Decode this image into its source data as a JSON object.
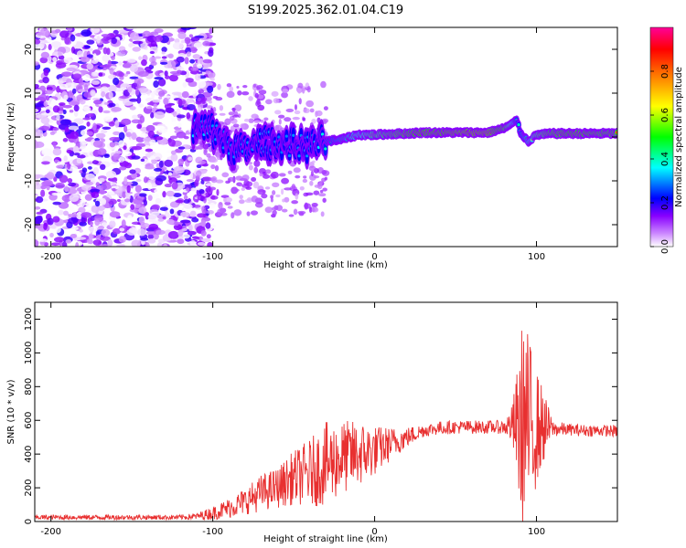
{
  "page_title": "S199.2025.362.01.04.C19",
  "chart_data": [
    {
      "id": "spectrogram",
      "type": "heatmap",
      "xlabel": "Height of straight line (km)",
      "ylabel": "Frequency (Hz)",
      "xlim": [
        -210,
        150
      ],
      "ylim": [
        -25,
        25
      ],
      "x_ticks": [
        -200,
        -100,
        0,
        100
      ],
      "y_ticks": [
        -20,
        -10,
        0,
        10,
        20
      ],
      "colorbar": {
        "label": "Normalized spectral amplitude",
        "range": [
          0,
          1
        ],
        "ticks": [
          0.0,
          0.2,
          0.4,
          0.6,
          0.8
        ],
        "colors": [
          "#ffffff",
          "#8800ff",
          "#0000ff",
          "#00ffff",
          "#00ff00",
          "#ffff00",
          "#ff6600",
          "#ff0000",
          "#ff00aa"
        ]
      },
      "ridge": {
        "x": [
          -110,
          -100,
          -90,
          -80,
          -70,
          -60,
          -50,
          -40,
          -30,
          -20,
          -10,
          0,
          10,
          20,
          30,
          40,
          50,
          60,
          70,
          80,
          85,
          88,
          90,
          95,
          100,
          110,
          120,
          130,
          140,
          150
        ],
        "y": [
          2,
          1.5,
          -2,
          -3,
          -1,
          -1.5,
          -2,
          -2,
          -1,
          -0.5,
          0.5,
          0.5,
          0.7,
          0.8,
          1,
          1,
          1,
          1,
          1,
          2,
          3,
          4,
          1,
          -1,
          0.5,
          0.8,
          0.8,
          0.8,
          0.8,
          0.8
        ],
        "amplitude": [
          0.35,
          0.3,
          0.3,
          0.3,
          0.3,
          0.28,
          0.3,
          0.3,
          0.4,
          0.5,
          0.6,
          0.7,
          0.75,
          0.8,
          0.85,
          0.85,
          0.88,
          0.9,
          0.9,
          0.8,
          0.6,
          0.4,
          0.4,
          0.55,
          0.7,
          0.8,
          0.82,
          0.82,
          0.8,
          0.8
        ]
      },
      "noise_region": {
        "x_from": -210,
        "x_to": -110
      }
    },
    {
      "id": "snr",
      "type": "line",
      "xlabel": "Height of straight line (km)",
      "ylabel": "SNR (10 * v/v)",
      "xlim": [
        -210,
        150
      ],
      "ylim": [
        0,
        1300
      ],
      "x_ticks": [
        -200,
        -100,
        0,
        100
      ],
      "y_ticks": [
        0,
        200,
        400,
        600,
        800,
        1000,
        1200
      ],
      "series": [
        {
          "name": "SNR",
          "color": "#e83030",
          "x": [
            -210,
            -200,
            -180,
            -160,
            -140,
            -120,
            -110,
            -100,
            -90,
            -80,
            -70,
            -60,
            -50,
            -40,
            -30,
            -20,
            -10,
            0,
            10,
            20,
            30,
            40,
            50,
            60,
            70,
            80,
            85,
            90,
            92,
            95,
            100,
            105,
            110,
            120,
            130,
            140,
            150
          ],
          "values": [
            25,
            25,
            25,
            25,
            25,
            25,
            30,
            50,
            80,
            120,
            170,
            200,
            260,
            290,
            340,
            380,
            400,
            420,
            460,
            500,
            540,
            555,
            560,
            560,
            560,
            560,
            570,
            550,
            600,
            560,
            560,
            560,
            550,
            545,
            540,
            540,
            535
          ],
          "noise_amplitude": [
            15,
            15,
            15,
            15,
            15,
            15,
            20,
            40,
            60,
            80,
            110,
            120,
            160,
            200,
            250,
            220,
            200,
            150,
            100,
            60,
            40,
            40,
            40,
            40,
            40,
            40,
            120,
            500,
            700,
            550,
            350,
            200,
            50,
            35,
            35,
            35,
            35
          ]
        }
      ]
    }
  ]
}
